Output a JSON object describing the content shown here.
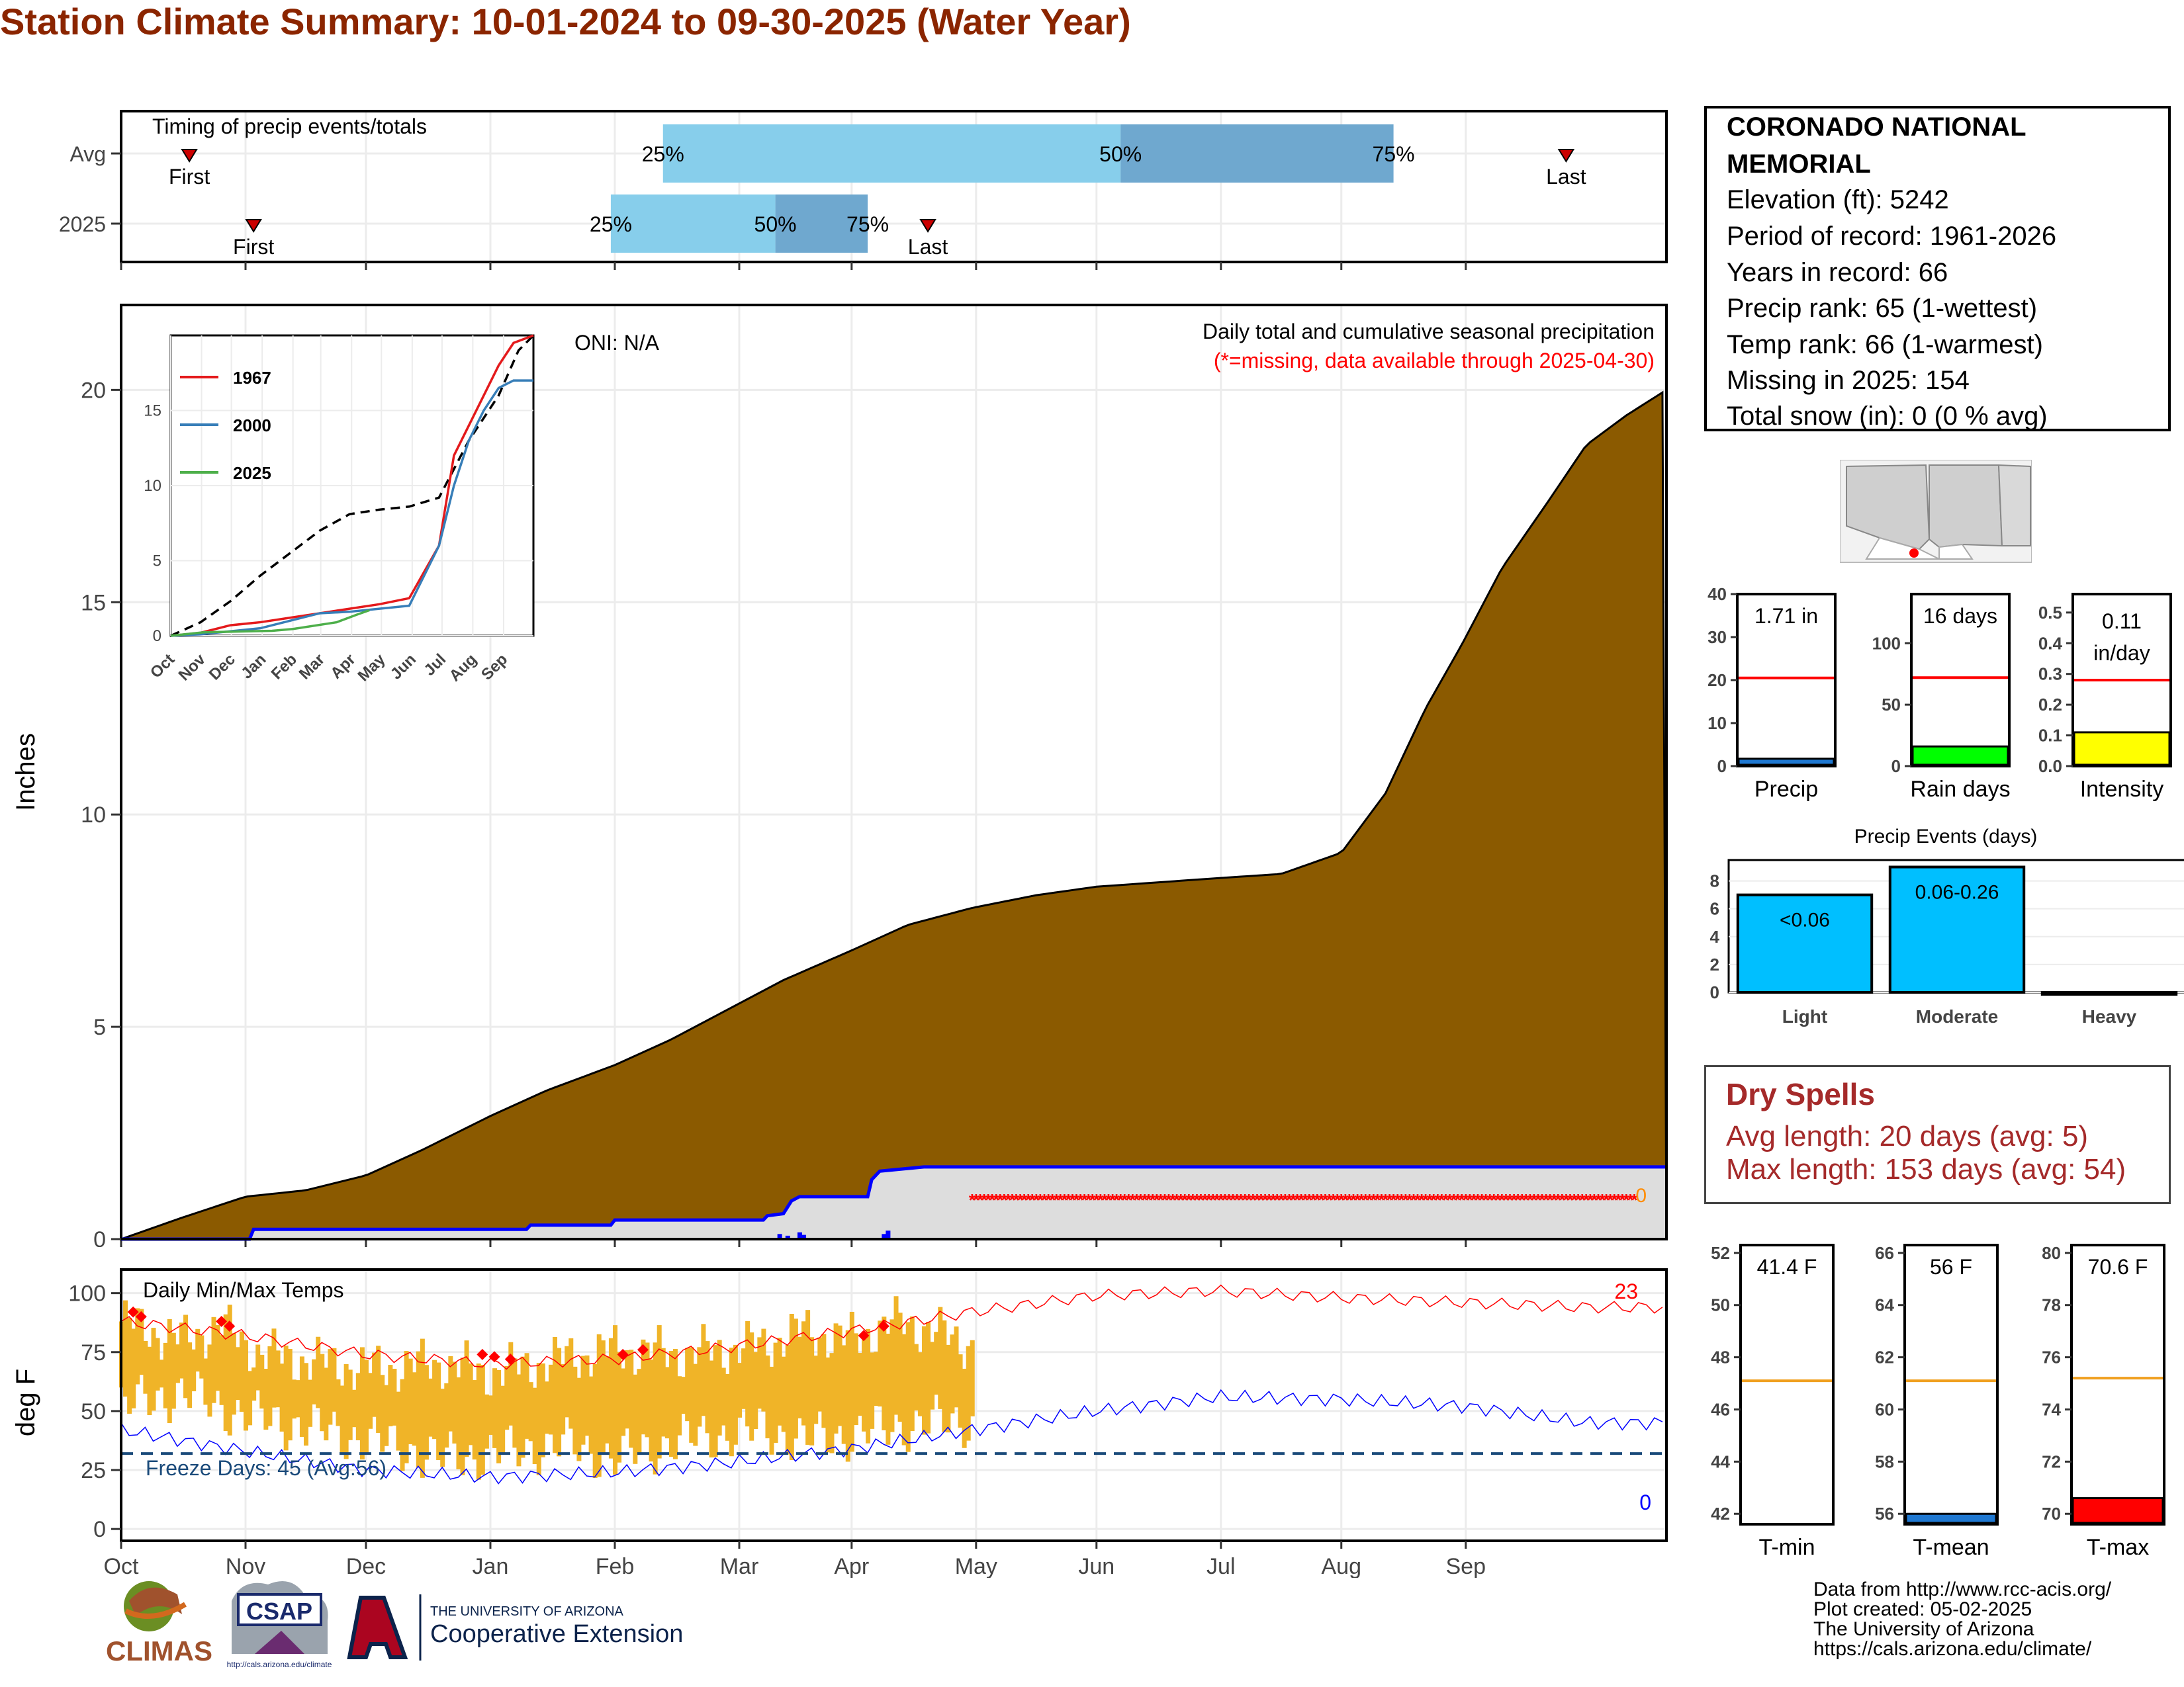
{
  "page_title": "Station Climate Summary: 10-01-2024 to 09-30-2025 (Water Year)",
  "station_info": {
    "name_line1": "CORONADO NATIONAL",
    "name_line2": "MEMORIAL",
    "elevation": "Elevation (ft): 5242",
    "period": "Period of record: 1961-2026",
    "years": "Years in record: 66",
    "precip_rank": "Precip rank: 65 (1-wettest)",
    "temp_rank": "Temp rank: 66 (1-warmest)",
    "missing": "Missing in 2025: 154",
    "snow": "Total snow (in): 0 (0 % avg)"
  },
  "dry_spells": {
    "title": "Dry Spells",
    "avg_length": "Avg length: 20 days (avg: 5)",
    "max_length": "Max length: 153 days (avg: 54)"
  },
  "credits": {
    "line1": "Data from http://www.rcc-acis.org/",
    "line2": "Plot created: 05-02-2025",
    "line3": "The University of Arizona",
    "line4": "https://cals.arizona.edu/climate/"
  },
  "logos": {
    "climas": "CLIMAS",
    "csap": "CSAP",
    "csap_url": "http://cals.arizona.edu/climate",
    "ua_small": "THE UNIVERSITY OF ARIZONA",
    "ua_big": "Cooperative Extension"
  },
  "colors": {
    "title": "#8b2500",
    "cumulative_fill": "#8b5a00",
    "current_line": "#0000ff",
    "missing_marker": "#ff0000",
    "temp_bar": "#f0b428",
    "avg_max_line": "#ff0000",
    "avg_min_line": "#0000ff",
    "freeze_line": "#1a4a7a",
    "avg_quartile": "#87ceeb",
    "mid_quartile": "#6fa8cf"
  },
  "chart_data": [
    {
      "id": "timing",
      "type": "bar",
      "title": "Timing of precip events/totals",
      "categories": [
        "Avg",
        "2025"
      ],
      "x_range_days": [
        0,
        365
      ],
      "series": [
        {
          "name": "Avg",
          "first_day": 17,
          "q25_day": 135,
          "q50_day": 249,
          "q75_day": 317,
          "last_day": 360,
          "first_label": "First",
          "last_label": "Last",
          "q25_label": "25%",
          "q50_label": "50%",
          "q75_label": "75%"
        },
        {
          "name": "2025",
          "first_day": 33,
          "q25_day": 122,
          "q50_day": 163,
          "q75_day": 186,
          "last_day": 201,
          "first_label": "First",
          "last_label": "Last",
          "q25_label": "25%",
          "q50_label": "50%",
          "q75_label": "75%"
        }
      ]
    },
    {
      "id": "main_precip",
      "type": "area",
      "title": "Daily total and cumulative seasonal precipitation",
      "subtitle": "(*=missing, data available through 2025-04-30)",
      "annotation_oni": "ONI: N/A",
      "ylabel": "Inches",
      "ylim": [
        0,
        22
      ],
      "yticks": [
        0,
        5,
        10,
        15,
        20
      ],
      "x_ticks": [
        "Oct",
        "Nov",
        "Dec",
        "Jan",
        "Feb",
        "Mar",
        "Apr",
        "May",
        "Jun",
        "Jul",
        "Aug",
        "Sep"
      ],
      "end_label": "0",
      "avg_cumulative": [
        [
          0,
          0
        ],
        [
          15,
          0.5
        ],
        [
          31,
          1.0
        ],
        [
          46,
          1.15
        ],
        [
          61,
          1.5
        ],
        [
          75,
          2.1
        ],
        [
          92,
          2.9
        ],
        [
          106,
          3.5
        ],
        [
          123,
          4.1
        ],
        [
          137,
          4.7
        ],
        [
          151,
          5.4
        ],
        [
          165,
          6.1
        ],
        [
          182,
          6.8
        ],
        [
          196,
          7.4
        ],
        [
          212,
          7.8
        ],
        [
          228,
          8.1
        ],
        [
          243,
          8.3
        ],
        [
          258,
          8.4
        ],
        [
          273,
          8.5
        ],
        [
          289,
          8.6
        ],
        [
          304,
          9.1
        ],
        [
          315,
          10.5
        ],
        [
          325,
          12.5
        ],
        [
          334,
          14.0
        ],
        [
          344,
          15.8
        ],
        [
          355,
          17.3
        ],
        [
          365,
          18.7
        ],
        [
          375,
          19.4
        ],
        [
          385,
          20.0
        ]
      ],
      "current_cumulative": [
        [
          0,
          0
        ],
        [
          32,
          0.0
        ],
        [
          33,
          0.23
        ],
        [
          101,
          0.23
        ],
        [
          102,
          0.33
        ],
        [
          122,
          0.33
        ],
        [
          123,
          0.45
        ],
        [
          160,
          0.45
        ],
        [
          161,
          0.55
        ],
        [
          165,
          0.6
        ],
        [
          167,
          0.9
        ],
        [
          169,
          1.0
        ],
        [
          186,
          1.0
        ],
        [
          187,
          1.4
        ],
        [
          189,
          1.6
        ],
        [
          200,
          1.7
        ],
        [
          385,
          1.7
        ]
      ],
      "missing_range": [
        212,
        385
      ],
      "missing_y": 1.0,
      "daily_bars": [
        [
          164,
          0.12
        ],
        [
          166,
          0.08
        ],
        [
          169,
          0.16
        ],
        [
          170,
          0.1
        ],
        [
          190,
          0.12
        ],
        [
          191,
          0.2
        ]
      ]
    },
    {
      "id": "inset_cumulative",
      "type": "line",
      "yticks": [
        0,
        5,
        10,
        15
      ],
      "ylim": [
        0,
        20
      ],
      "x_ticks": [
        "Oct",
        "Nov",
        "Dec",
        "Jan",
        "Feb",
        "Mar",
        "Apr",
        "May",
        "Jun",
        "Jul",
        "Aug",
        "Sep"
      ],
      "series": [
        {
          "name": "1967",
          "color": "#e41a1c",
          "values": [
            [
              0,
              0
            ],
            [
              30,
              0.2
            ],
            [
              60,
              0.7
            ],
            [
              90,
              0.9
            ],
            [
              120,
              1.2
            ],
            [
              150,
              1.5
            ],
            [
              180,
              1.8
            ],
            [
              210,
              2.1
            ],
            [
              240,
              2.5
            ],
            [
              270,
              6.0
            ],
            [
              285,
              12.0
            ],
            [
              300,
              14.0
            ],
            [
              315,
              16.0
            ],
            [
              330,
              18.0
            ],
            [
              345,
              19.5
            ],
            [
              365,
              20.0
            ]
          ]
        },
        {
          "name": "2000",
          "color": "#377eb8",
          "values": [
            [
              0,
              0
            ],
            [
              30,
              0.1
            ],
            [
              60,
              0.3
            ],
            [
              90,
              0.5
            ],
            [
              120,
              1.0
            ],
            [
              150,
              1.5
            ],
            [
              180,
              1.6
            ],
            [
              210,
              1.8
            ],
            [
              240,
              2.0
            ],
            [
              270,
              6.0
            ],
            [
              285,
              10.0
            ],
            [
              300,
              13.0
            ],
            [
              315,
              15.0
            ],
            [
              330,
              16.5
            ],
            [
              345,
              17.0
            ],
            [
              365,
              17.0
            ]
          ]
        },
        {
          "name": "2025",
          "color": "#4daf4a",
          "values": [
            [
              0,
              0
            ],
            [
              33,
              0.23
            ],
            [
              102,
              0.33
            ],
            [
              123,
              0.45
            ],
            [
              167,
              0.9
            ],
            [
              187,
              1.4
            ],
            [
              200,
              1.7
            ]
          ]
        }
      ],
      "avg_series": [
        [
          0,
          0
        ],
        [
          30,
          0.9
        ],
        [
          60,
          2.3
        ],
        [
          90,
          4.0
        ],
        [
          120,
          5.5
        ],
        [
          150,
          7.0
        ],
        [
          180,
          8.1
        ],
        [
          210,
          8.4
        ],
        [
          240,
          8.6
        ],
        [
          270,
          9.2
        ],
        [
          300,
          13.0
        ],
        [
          330,
          16.0
        ],
        [
          350,
          19.0
        ],
        [
          365,
          20.0
        ]
      ]
    },
    {
      "id": "temps",
      "type": "bar",
      "title": "Daily Min/Max Temps",
      "ylabel": "deg F",
      "ylim": [
        -5,
        110
      ],
      "yticks": [
        0,
        25,
        50,
        75,
        100
      ],
      "freeze_label": "Freeze Days: 45 (Avg:56)",
      "freeze_temp": 32,
      "max_count_label": "23",
      "min_count_label": "0",
      "x_ticks": [
        "Oct",
        "Nov",
        "Dec",
        "Jan",
        "Feb",
        "Mar",
        "Apr",
        "May",
        "Jun",
        "Jul",
        "Aug",
        "Sep"
      ],
      "avg_max": [
        [
          0,
          88
        ],
        [
          31,
          82
        ],
        [
          61,
          74
        ],
        [
          92,
          70
        ],
        [
          123,
          72
        ],
        [
          151,
          77
        ],
        [
          182,
          84
        ],
        [
          212,
          92
        ],
        [
          243,
          99
        ],
        [
          273,
          101
        ],
        [
          304,
          98
        ],
        [
          335,
          96
        ],
        [
          365,
          94
        ]
      ],
      "avg_min": [
        [
          0,
          42
        ],
        [
          31,
          33
        ],
        [
          61,
          25
        ],
        [
          92,
          22
        ],
        [
          123,
          24
        ],
        [
          151,
          28
        ],
        [
          182,
          34
        ],
        [
          212,
          42
        ],
        [
          243,
          50
        ],
        [
          273,
          56
        ],
        [
          304,
          55
        ],
        [
          335,
          52
        ],
        [
          365,
          45
        ]
      ],
      "daily_max_envelope": [
        [
          0,
          88
        ],
        [
          15,
          80
        ],
        [
          25,
          86
        ],
        [
          35,
          74
        ],
        [
          61,
          68
        ],
        [
          80,
          70
        ],
        [
          92,
          66
        ],
        [
          110,
          72
        ],
        [
          123,
          76
        ],
        [
          140,
          74
        ],
        [
          160,
          78
        ],
        [
          170,
          84
        ],
        [
          180,
          80
        ],
        [
          195,
          88
        ],
        [
          212,
          78
        ]
      ],
      "daily_min_envelope": [
        [
          0,
          52
        ],
        [
          15,
          58
        ],
        [
          31,
          48
        ],
        [
          50,
          42
        ],
        [
          61,
          38
        ],
        [
          80,
          30
        ],
        [
          92,
          32
        ],
        [
          110,
          36
        ],
        [
          123,
          30
        ],
        [
          140,
          38
        ],
        [
          160,
          42
        ],
        [
          170,
          38
        ],
        [
          182,
          40
        ],
        [
          195,
          44
        ],
        [
          212,
          46
        ]
      ],
      "record_max_points": [
        [
          3,
          92
        ],
        [
          5,
          90
        ],
        [
          25,
          88
        ],
        [
          27,
          86
        ],
        [
          90,
          74
        ],
        [
          93,
          73
        ],
        [
          97,
          72
        ],
        [
          125,
          74
        ],
        [
          130,
          76
        ],
        [
          185,
          82
        ],
        [
          190,
          86
        ]
      ]
    },
    {
      "id": "precip_total",
      "type": "bar",
      "xlabel": "Precip",
      "yticks": [
        0,
        10,
        20,
        30,
        40
      ],
      "ylim": [
        0,
        40
      ],
      "value": 1.71,
      "avg": 20.5,
      "value_label": "1.71 in",
      "bar_color": "#1f78d1"
    },
    {
      "id": "rain_days",
      "type": "bar",
      "xlabel": "Rain days",
      "yticks": [
        0,
        50,
        100
      ],
      "ylim": [
        0,
        140
      ],
      "value": 16,
      "avg": 72,
      "value_label": "16 days",
      "bar_color": "#00ff00"
    },
    {
      "id": "intensity",
      "type": "bar",
      "xlabel": "Intensity",
      "yticks": [
        0.0,
        0.1,
        0.2,
        0.3,
        0.4,
        0.5
      ],
      "ylim": [
        0,
        0.56
      ],
      "value": 0.11,
      "avg": 0.28,
      "value_label_1": "0.11",
      "value_label_2": "in/day",
      "bar_color": "#ffff00"
    },
    {
      "id": "precip_events",
      "type": "bar",
      "title": "Precip Events (days)",
      "categories": [
        "Light",
        "Moderate",
        "Heavy"
      ],
      "values": [
        7,
        9,
        0
      ],
      "bar_labels": [
        "<0.06",
        "0.06-0.26",
        ""
      ],
      "yticks": [
        0,
        2,
        4,
        6,
        8
      ],
      "ylim": [
        0,
        9.5
      ],
      "bar_color": "#00bfff"
    },
    {
      "id": "tmin",
      "type": "bar",
      "xlabel": "T-min",
      "yticks": [
        42,
        44,
        46,
        48,
        50,
        52
      ],
      "ylim": [
        41.6,
        52.3
      ],
      "value": 41.4,
      "avg": 47.1,
      "value_label": "41.4 F",
      "bar_color": "#1f78d1"
    },
    {
      "id": "tmean",
      "type": "bar",
      "xlabel": "T-mean",
      "yticks": [
        56,
        58,
        60,
        62,
        64,
        66
      ],
      "ylim": [
        55.6,
        66.3
      ],
      "value": 56,
      "avg": 61.1,
      "value_label": "56 F",
      "bar_color": "#1f78d1"
    },
    {
      "id": "tmax",
      "type": "bar",
      "xlabel": "T-max",
      "yticks": [
        70,
        72,
        74,
        76,
        78,
        80
      ],
      "ylim": [
        69.6,
        80.3
      ],
      "value": 70.6,
      "avg": 75.2,
      "value_label": "70.6 F",
      "bar_color": "#ff0000"
    }
  ]
}
